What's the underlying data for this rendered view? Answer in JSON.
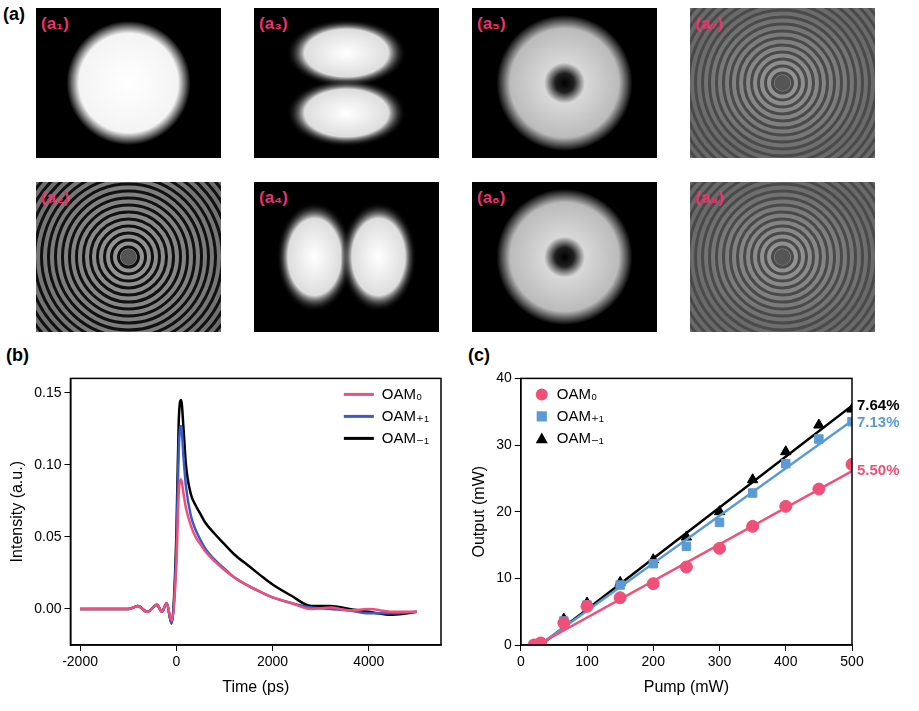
{
  "panels": {
    "a": {
      "label": "(a)",
      "images": [
        "(a₁)",
        "(a₂)",
        "(a₃)",
        "(a₄)",
        "(a₅)",
        "(a₆)",
        "(a₇)",
        "(a₈)"
      ]
    }
  },
  "chart_data": [
    {
      "panel": "(b)",
      "type": "line",
      "x_label": "Time (ps)",
      "y_label": "Intensity (a.u.)",
      "x": [
        -2000,
        -1500,
        -1000,
        -800,
        -600,
        -400,
        -300,
        -200,
        -100,
        0,
        50,
        100,
        150,
        200,
        300,
        400,
        500,
        600,
        800,
        1000,
        1200,
        1500,
        1800,
        2000,
        2400,
        2800,
        3200,
        3600,
        4000,
        4500,
        5000
      ],
      "series": [
        {
          "name": "OAM₀",
          "color": "#f04f78",
          "values": [
            0,
            0,
            0,
            0.002,
            -0.002,
            0.003,
            -0.002,
            0.004,
            -0.008,
            0.03,
            0.08,
            0.09,
            0.08,
            0.07,
            0.058,
            0.05,
            0.045,
            0.04,
            0.033,
            0.027,
            0.022,
            0.016,
            0.011,
            0.008,
            0.004,
            0,
            0.001,
            -0.001,
            0,
            -0.002,
            -0.002
          ]
        },
        {
          "name": "OAM₊₁",
          "color": "#3a5cc6",
          "values": [
            0,
            0,
            0,
            0.002,
            -0.002,
            0.003,
            -0.002,
            0.004,
            -0.01,
            0.04,
            0.11,
            0.127,
            0.105,
            0.085,
            0.065,
            0.055,
            0.048,
            0.042,
            0.034,
            0.028,
            0.022,
            0.016,
            0.011,
            0.008,
            0.004,
            0.001,
            0,
            -0.001,
            -0.003,
            -0.003,
            -0.002
          ]
        },
        {
          "name": "OAM₋₁",
          "color": "#000000",
          "values": [
            0,
            0,
            0,
            0.002,
            -0.002,
            0.003,
            -0.002,
            0.004,
            -0.01,
            0.05,
            0.13,
            0.145,
            0.125,
            0.1,
            0.08,
            0.072,
            0.066,
            0.06,
            0.052,
            0.045,
            0.038,
            0.03,
            0.022,
            0.017,
            0.009,
            0.002,
            0.002,
            0,
            -0.002,
            -0.004,
            -0.002
          ]
        }
      ],
      "xlim": [
        -2200,
        5500
      ],
      "xticks": [
        -2000,
        0,
        2000,
        4000
      ],
      "ylim": [
        -0.025,
        0.16
      ],
      "yticks": [
        {
          "value": 0,
          "label": "0.00"
        },
        {
          "value": 0.05,
          "label": "0.05"
        },
        {
          "value": 0.1,
          "label": "0.10"
        },
        {
          "value": 0.15,
          "label": "0.15"
        }
      ],
      "grid": false,
      "legend": "upper right"
    },
    {
      "panel": "(c)",
      "type": "scatter",
      "x_label": "Pump (mW)",
      "y_label": "Output (mW)",
      "series": [
        {
          "name": "OAM₀",
          "color": "#f04f78",
          "marker": "circle",
          "x": [
            20,
            30,
            65,
            100,
            150,
            200,
            250,
            300,
            350,
            400,
            450,
            500
          ],
          "values": [
            0,
            0.3,
            3.3,
            5.8,
            7.1,
            9.2,
            11.7,
            14.5,
            17.8,
            20.8,
            23.4,
            27.1
          ],
          "fit": {
            "x": [
              25,
              500
            ],
            "values": [
              0,
              26.1
            ]
          },
          "fit_label": "5.50%"
        },
        {
          "name": "OAM₊₁",
          "color": "#5b9bd5",
          "marker": "square",
          "x": [
            20,
            30,
            65,
            100,
            150,
            200,
            250,
            300,
            350,
            400,
            450,
            500
          ],
          "values": [
            0,
            0.3,
            3.6,
            6.0,
            9.0,
            12.2,
            14.8,
            18.4,
            22.8,
            27.2,
            30.9,
            33.5
          ],
          "fit": {
            "x": [
              28,
              500
            ],
            "values": [
              0,
              33.65
            ]
          },
          "fit_label": "7.13%"
        },
        {
          "name": "OAM₋₁",
          "color": "#000000",
          "marker": "triangle",
          "x": [
            20,
            30,
            65,
            100,
            150,
            200,
            250,
            300,
            350,
            400,
            450,
            500
          ],
          "values": [
            0,
            0.3,
            3.9,
            6.3,
            9.4,
            12.8,
            16.2,
            20.0,
            24.8,
            29.0,
            33.0,
            35.4
          ],
          "fit": {
            "x": [
              30,
              500
            ],
            "values": [
              0,
              35.9
            ]
          },
          "fit_label": "7.64%"
        }
      ],
      "xlim": [
        0,
        500
      ],
      "xticks": [
        0,
        100,
        200,
        300,
        400,
        500
      ],
      "ylim": [
        0,
        40
      ],
      "yticks": [
        0,
        10,
        20,
        30,
        40
      ],
      "grid": false,
      "legend": "upper left"
    }
  ]
}
